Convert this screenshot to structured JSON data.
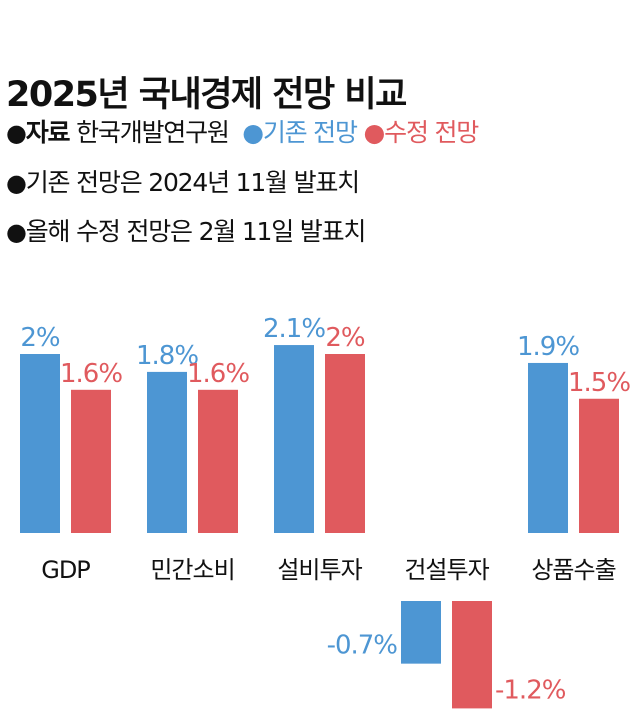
{
  "header": {
    "title": "2025년 국내경제 전망 비교",
    "bullet": "●",
    "source_label": "자료",
    "source_value": "한국개발연구원",
    "legend_existing": "●기존 전망",
    "legend_revised": "●수정 전망",
    "note_1": "기존 전망은 2024년 11월 발표치",
    "note_2": "올해 수정 전망은 2월 11일 발표치"
  },
  "colors": {
    "existing": "#4d96d3",
    "revised": "#e05a5e",
    "text": "#111111"
  },
  "chart_data": {
    "type": "bar",
    "title": "2025년 국내경제 전망 비교",
    "categories": [
      "GDP",
      "민간소비",
      "설비투자",
      "건설투자",
      "상품수출"
    ],
    "series": [
      {
        "name": "기존 전망",
        "values": [
          2,
          1.8,
          2.1,
          -0.7,
          1.9
        ],
        "labels": [
          "2%",
          "1.8%",
          "2.1%",
          "-0.7%",
          "1.9%"
        ]
      },
      {
        "name": "수정 전망",
        "values": [
          1.6,
          1.6,
          2,
          -1.2,
          1.5
        ],
        "labels": [
          "1.6%",
          "1.6%",
          "2%",
          "-1.2%",
          "1.5%"
        ]
      }
    ],
    "unit": "%",
    "grid": false,
    "legend": "top"
  }
}
